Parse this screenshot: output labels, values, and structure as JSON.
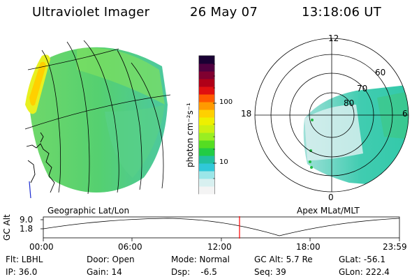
{
  "header": {
    "instrument": "Ultraviolet Imager",
    "date": "26 May 07",
    "time": "13:18:06 UT"
  },
  "left_panel": {
    "caption": "Geographic Lat/Lon"
  },
  "right_panel": {
    "caption": "Apex MLat/MLT",
    "mlt_labels": [
      "12",
      "18",
      "6",
      "0"
    ],
    "mlat_labels": [
      "60",
      "70",
      "80"
    ]
  },
  "colorbar": {
    "label": "photon cm⁻²s⁻¹",
    "ticks": [
      "100",
      "10"
    ],
    "colors": [
      "#f4f4f4",
      "#d8f0f0",
      "#9be6e8",
      "#30c8d8",
      "#22c0a0",
      "#22cc44",
      "#55dd22",
      "#99ee22",
      "#ccf011",
      "#eef000",
      "#ffd000",
      "#ff9a00",
      "#ff5a00",
      "#e01010",
      "#b00018",
      "#800030",
      "#500040",
      "#1a0033"
    ]
  },
  "altitude_plot": {
    "axis_label": "GC Alt",
    "y_ticks": [
      "9.0",
      "1.8"
    ],
    "x_ticks": [
      "00:00",
      "06:00",
      "12:00",
      "18:00",
      "23:59"
    ],
    "cursor_color": "#ff0000"
  },
  "info": {
    "flt": "Flt: LBHL",
    "door": "Door: Open",
    "mode": "Mode: Normal",
    "gc_alt": "GC Alt: 5.7 Re",
    "glat": "GLat:  -56.1",
    "ip": "IP: 36.0",
    "gain": "Gain: 14",
    "dsp": "Dsp:    -6.5",
    "seq": "Seq: 39",
    "glon": "GLon: 222.4"
  }
}
